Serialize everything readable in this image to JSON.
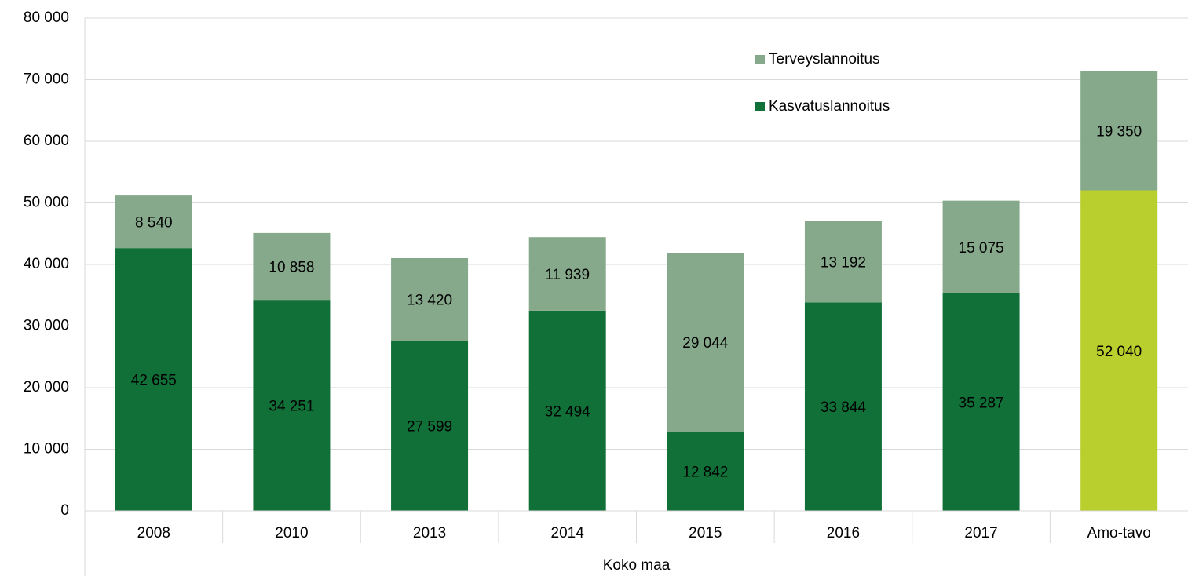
{
  "chart_data": {
    "type": "stacked_bar",
    "categories": [
      "2008",
      "2010",
      "2013",
      "2014",
      "2015",
      "2016",
      "2017",
      "Amo-tavo"
    ],
    "group_label": "Koko maa",
    "series": [
      {
        "name": "Kasvatuslannoitus",
        "color": "#117037",
        "colors": [
          "#117037",
          "#117037",
          "#117037",
          "#117037",
          "#117037",
          "#117037",
          "#117037",
          "#b8cf2d"
        ],
        "values": [
          42655,
          34251,
          27599,
          32494,
          12842,
          33844,
          35287,
          52040
        ],
        "value_labels": [
          "42 655",
          "34 251",
          "27 599",
          "32 494",
          "12 842",
          "33 844",
          "35 287",
          "52 040"
        ]
      },
      {
        "name": "Terveyslannoitus",
        "color": "#86a98c",
        "values": [
          8540,
          10858,
          13420,
          11939,
          29044,
          13192,
          15075,
          19350
        ],
        "value_labels": [
          "8 540",
          "10 858",
          "13 420",
          "11 939",
          "29 044",
          "13 192",
          "15 075",
          "19 350"
        ]
      }
    ],
    "ylim": [
      0,
      80000
    ],
    "yticks": [
      0,
      {
        "value": 10000,
        "label": "10 000"
      },
      {
        "value": 20000,
        "label": "20 000"
      },
      {
        "value": 30000,
        "label": "30 000"
      },
      {
        "value": 40000,
        "label": "40 000"
      },
      {
        "value": 50000,
        "label": "50 000"
      },
      {
        "value": 60000,
        "label": "60 000"
      },
      {
        "value": 70000,
        "label": "70 000"
      },
      {
        "value": 80000,
        "label": "80 000"
      }
    ],
    "grid": true,
    "legend": "top-right"
  }
}
